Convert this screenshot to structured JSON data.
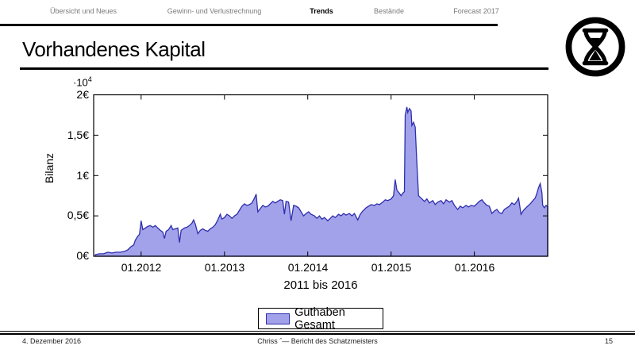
{
  "nav": {
    "items": [
      {
        "label": "Übersicht und Neues",
        "active": false
      },
      {
        "label": "Gewinn- und Verlustrechnung",
        "active": false
      },
      {
        "label": "Trends",
        "active": true
      },
      {
        "label": "Bestände",
        "active": false
      },
      {
        "label": "Forecast 2017",
        "active": false
      }
    ]
  },
  "title": "Vorhandenes Kapital",
  "logo": {
    "icon": "hourglass-in-circle"
  },
  "chart_data": {
    "type": "area",
    "title": "",
    "xlabel": "2011 bis 2016",
    "ylabel": "Bilanz",
    "y_multiplier_base": "·10",
    "y_multiplier_exp": "4",
    "xlim": [
      2011.43,
      2016.88
    ],
    "ylim": [
      0,
      2
    ],
    "grid": false,
    "legend_position": "below",
    "xticks": [
      2012,
      2013,
      2014,
      2015,
      2016
    ],
    "xtick_labels": [
      "01.2012",
      "01.2013",
      "01.2014",
      "01.2015",
      "01.2016"
    ],
    "yticks": [
      0,
      0.5,
      1,
      1.5,
      2
    ],
    "ytick_labels": [
      "0€",
      "0,5€",
      "1€",
      "1,5€",
      "2€"
    ],
    "colors": {
      "area_fill": "#a2a2ea",
      "area_stroke": "#2e2eae",
      "frame": "#000000"
    },
    "legend": [
      {
        "label": "Guthaben Gesamt"
      }
    ],
    "series": [
      {
        "name": "Guthaben Gesamt",
        "points": [
          [
            2011.45,
            0.02
          ],
          [
            2011.5,
            0.03
          ],
          [
            2011.55,
            0.03
          ],
          [
            2011.6,
            0.05
          ],
          [
            2011.65,
            0.04
          ],
          [
            2011.7,
            0.05
          ],
          [
            2011.75,
            0.05
          ],
          [
            2011.8,
            0.06
          ],
          [
            2011.84,
            0.08
          ],
          [
            2011.88,
            0.12
          ],
          [
            2011.91,
            0.14
          ],
          [
            2011.93,
            0.2
          ],
          [
            2011.96,
            0.25
          ],
          [
            2011.98,
            0.27
          ],
          [
            2012.0,
            0.44
          ],
          [
            2012.02,
            0.33
          ],
          [
            2012.05,
            0.35
          ],
          [
            2012.08,
            0.37
          ],
          [
            2012.11,
            0.38
          ],
          [
            2012.14,
            0.36
          ],
          [
            2012.17,
            0.38
          ],
          [
            2012.2,
            0.35
          ],
          [
            2012.23,
            0.32
          ],
          [
            2012.26,
            0.3
          ],
          [
            2012.28,
            0.22
          ],
          [
            2012.3,
            0.31
          ],
          [
            2012.33,
            0.33
          ],
          [
            2012.36,
            0.38
          ],
          [
            2012.38,
            0.33
          ],
          [
            2012.41,
            0.34
          ],
          [
            2012.44,
            0.35
          ],
          [
            2012.46,
            0.17
          ],
          [
            2012.48,
            0.32
          ],
          [
            2012.52,
            0.35
          ],
          [
            2012.55,
            0.36
          ],
          [
            2012.58,
            0.38
          ],
          [
            2012.61,
            0.41
          ],
          [
            2012.63,
            0.45
          ],
          [
            2012.65,
            0.4
          ],
          [
            2012.68,
            0.28
          ],
          [
            2012.71,
            0.32
          ],
          [
            2012.74,
            0.34
          ],
          [
            2012.77,
            0.32
          ],
          [
            2012.8,
            0.31
          ],
          [
            2012.83,
            0.34
          ],
          [
            2012.86,
            0.36
          ],
          [
            2012.89,
            0.39
          ],
          [
            2012.92,
            0.45
          ],
          [
            2012.95,
            0.52
          ],
          [
            2012.97,
            0.46
          ],
          [
            2013.0,
            0.48
          ],
          [
            2013.03,
            0.52
          ],
          [
            2013.06,
            0.5
          ],
          [
            2013.09,
            0.47
          ],
          [
            2013.12,
            0.5
          ],
          [
            2013.15,
            0.52
          ],
          [
            2013.18,
            0.57
          ],
          [
            2013.21,
            0.62
          ],
          [
            2013.24,
            0.65
          ],
          [
            2013.27,
            0.63
          ],
          [
            2013.3,
            0.64
          ],
          [
            2013.33,
            0.66
          ],
          [
            2013.36,
            0.72
          ],
          [
            2013.38,
            0.77
          ],
          [
            2013.4,
            0.55
          ],
          [
            2013.43,
            0.59
          ],
          [
            2013.46,
            0.63
          ],
          [
            2013.49,
            0.61
          ],
          [
            2013.52,
            0.62
          ],
          [
            2013.55,
            0.65
          ],
          [
            2013.58,
            0.68
          ],
          [
            2013.61,
            0.66
          ],
          [
            2013.64,
            0.68
          ],
          [
            2013.67,
            0.7
          ],
          [
            2013.7,
            0.69
          ],
          [
            2013.72,
            0.52
          ],
          [
            2013.74,
            0.68
          ],
          [
            2013.77,
            0.67
          ],
          [
            2013.8,
            0.44
          ],
          [
            2013.83,
            0.63
          ],
          [
            2013.86,
            0.62
          ],
          [
            2013.89,
            0.6
          ],
          [
            2013.92,
            0.55
          ],
          [
            2013.95,
            0.5
          ],
          [
            2013.98,
            0.53
          ],
          [
            2014.01,
            0.55
          ],
          [
            2014.04,
            0.52
          ],
          [
            2014.08,
            0.5
          ],
          [
            2014.11,
            0.47
          ],
          [
            2014.14,
            0.5
          ],
          [
            2014.17,
            0.46
          ],
          [
            2014.2,
            0.48
          ],
          [
            2014.24,
            0.44
          ],
          [
            2014.27,
            0.47
          ],
          [
            2014.3,
            0.5
          ],
          [
            2014.33,
            0.48
          ],
          [
            2014.37,
            0.52
          ],
          [
            2014.4,
            0.5
          ],
          [
            2014.43,
            0.53
          ],
          [
            2014.46,
            0.51
          ],
          [
            2014.5,
            0.53
          ],
          [
            2014.53,
            0.5
          ],
          [
            2014.56,
            0.53
          ],
          [
            2014.6,
            0.45
          ],
          [
            2014.63,
            0.52
          ],
          [
            2014.66,
            0.56
          ],
          [
            2014.7,
            0.6
          ],
          [
            2014.73,
            0.62
          ],
          [
            2014.76,
            0.64
          ],
          [
            2014.8,
            0.63
          ],
          [
            2014.83,
            0.65
          ],
          [
            2014.86,
            0.64
          ],
          [
            2014.9,
            0.67
          ],
          [
            2014.93,
            0.7
          ],
          [
            2014.96,
            0.69
          ],
          [
            2015.0,
            0.71
          ],
          [
            2015.03,
            0.75
          ],
          [
            2015.05,
            0.95
          ],
          [
            2015.07,
            0.82
          ],
          [
            2015.1,
            0.78
          ],
          [
            2015.12,
            0.75
          ],
          [
            2015.14,
            0.78
          ],
          [
            2015.16,
            0.8
          ],
          [
            2015.17,
            1.75
          ],
          [
            2015.19,
            1.85
          ],
          [
            2015.2,
            1.78
          ],
          [
            2015.22,
            1.83
          ],
          [
            2015.24,
            1.8
          ],
          [
            2015.25,
            1.62
          ],
          [
            2015.27,
            1.66
          ],
          [
            2015.29,
            1.6
          ],
          [
            2015.31,
            1.15
          ],
          [
            2015.33,
            0.75
          ],
          [
            2015.36,
            0.72
          ],
          [
            2015.4,
            0.68
          ],
          [
            2015.43,
            0.71
          ],
          [
            2015.46,
            0.66
          ],
          [
            2015.5,
            0.69
          ],
          [
            2015.53,
            0.64
          ],
          [
            2015.56,
            0.67
          ],
          [
            2015.6,
            0.69
          ],
          [
            2015.63,
            0.65
          ],
          [
            2015.66,
            0.7
          ],
          [
            2015.7,
            0.67
          ],
          [
            2015.73,
            0.69
          ],
          [
            2015.76,
            0.63
          ],
          [
            2015.8,
            0.58
          ],
          [
            2015.83,
            0.62
          ],
          [
            2015.86,
            0.6
          ],
          [
            2015.9,
            0.63
          ],
          [
            2015.93,
            0.61
          ],
          [
            2015.96,
            0.63
          ],
          [
            2016.0,
            0.62
          ],
          [
            2016.03,
            0.65
          ],
          [
            2016.06,
            0.68
          ],
          [
            2016.09,
            0.7
          ],
          [
            2016.12,
            0.66
          ],
          [
            2016.15,
            0.63
          ],
          [
            2016.18,
            0.62
          ],
          [
            2016.21,
            0.53
          ],
          [
            2016.24,
            0.56
          ],
          [
            2016.27,
            0.58
          ],
          [
            2016.3,
            0.54
          ],
          [
            2016.33,
            0.53
          ],
          [
            2016.36,
            0.58
          ],
          [
            2016.39,
            0.6
          ],
          [
            2016.42,
            0.62
          ],
          [
            2016.45,
            0.66
          ],
          [
            2016.48,
            0.64
          ],
          [
            2016.51,
            0.68
          ],
          [
            2016.53,
            0.72
          ],
          [
            2016.56,
            0.52
          ],
          [
            2016.59,
            0.57
          ],
          [
            2016.62,
            0.6
          ],
          [
            2016.65,
            0.63
          ],
          [
            2016.68,
            0.66
          ],
          [
            2016.71,
            0.7
          ],
          [
            2016.73,
            0.72
          ],
          [
            2016.75,
            0.78
          ],
          [
            2016.77,
            0.85
          ],
          [
            2016.79,
            0.9
          ],
          [
            2016.81,
            0.79
          ],
          [
            2016.82,
            0.63
          ],
          [
            2016.84,
            0.6
          ],
          [
            2016.86,
            0.63
          ],
          [
            2016.88,
            0.61
          ]
        ]
      }
    ]
  },
  "footer": {
    "date": "4. Dezember 2016",
    "center": "Chriss ˆ— Bericht des Schatzmeisters",
    "page": "15"
  }
}
